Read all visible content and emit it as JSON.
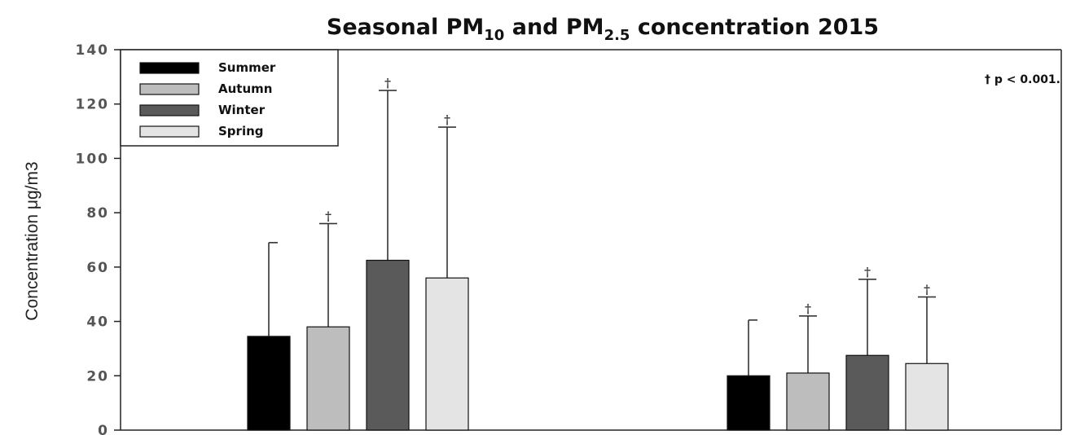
{
  "chart_data": {
    "type": "bar",
    "title_parts": [
      "Seasonal PM",
      "10",
      " and PM",
      "2.5",
      " concentration 2015"
    ],
    "ylabel": "Concentration μg/m3",
    "xlabel": "",
    "ylim": [
      0,
      140
    ],
    "yticks": [
      "0",
      "20",
      "40",
      "60",
      "80",
      "100",
      "120",
      "140"
    ],
    "categories": [
      "",
      ""
    ],
    "series": [
      {
        "name": "Summer",
        "color": "#000000",
        "values": [
          34.5,
          20
        ],
        "errors": [
          34.5,
          20.5
        ],
        "dagger": [
          false,
          false
        ]
      },
      {
        "name": "Autumn",
        "color": "#bdbdbd",
        "values": [
          38,
          21
        ],
        "errors": [
          38,
          21
        ],
        "dagger": [
          true,
          true
        ]
      },
      {
        "name": "Winter",
        "color": "#5a5a5a",
        "values": [
          62.5,
          27.5
        ],
        "errors": [
          62.5,
          28
        ],
        "dagger": [
          true,
          true
        ]
      },
      {
        "name": "Spring",
        "color": "#e4e4e4",
        "values": [
          56,
          24.5
        ],
        "errors": [
          55.5,
          24.5
        ],
        "dagger": [
          true,
          true
        ]
      }
    ],
    "annotation": "† p < 0.001.",
    "dagger_symbol": "†",
    "legend_position": "top-left",
    "grid": false
  }
}
